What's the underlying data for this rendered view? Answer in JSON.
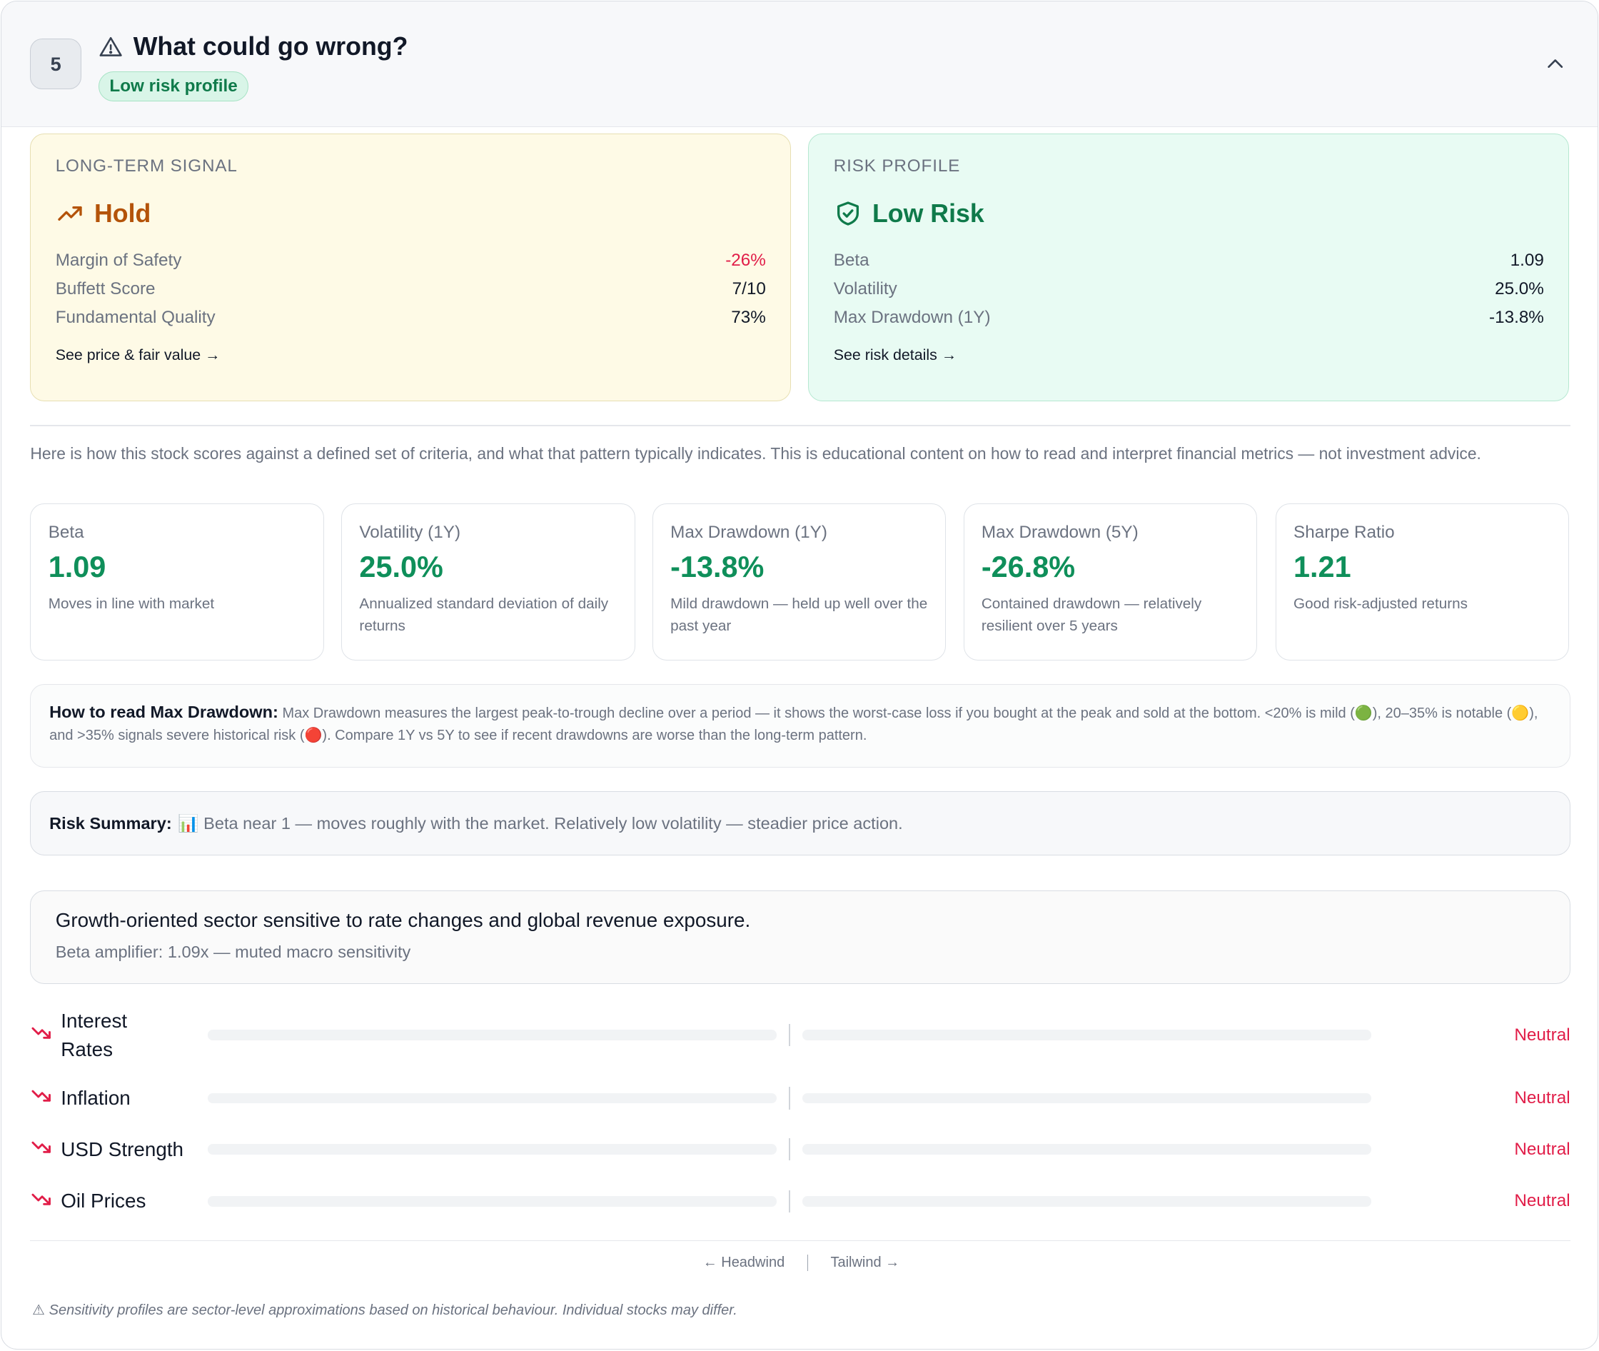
{
  "header": {
    "step": "5",
    "title": "What could go wrong?",
    "badge": "Low risk profile"
  },
  "long_term": {
    "eyebrow": "LONG-TERM SIGNAL",
    "signal": "Hold",
    "rows": [
      {
        "label": "Margin of Safety",
        "value": "-26%"
      },
      {
        "label": "Buffett Score",
        "value": "7/10"
      },
      {
        "label": "Fundamental Quality",
        "value": "73%"
      }
    ],
    "link": "See price & fair value →"
  },
  "risk_profile": {
    "eyebrow": "RISK PROFILE",
    "signal": "Low Risk",
    "rows": [
      {
        "label": "Beta",
        "value": "1.09"
      },
      {
        "label": "Volatility",
        "value": "25.0%"
      },
      {
        "label": "Max Drawdown (1Y)",
        "value": "-13.8%"
      }
    ],
    "link": "See risk details →"
  },
  "intro": "Here is how this stock scores against a defined set of criteria, and what that pattern typically indicates. This is educational content on how to read and interpret financial metrics — not investment advice.",
  "metrics": [
    {
      "label": "Beta",
      "value": "1.09",
      "desc": "Moves in line with market"
    },
    {
      "label": "Volatility (1Y)",
      "value": "25.0%",
      "desc": "Annualized standard deviation of daily returns"
    },
    {
      "label": "Max Drawdown (1Y)",
      "value": "-13.8%",
      "desc": "Mild drawdown — held up well over the past year"
    },
    {
      "label": "Max Drawdown (5Y)",
      "value": "-26.8%",
      "desc": "Contained drawdown — relatively resilient over 5 years"
    },
    {
      "label": "Sharpe Ratio",
      "value": "1.21",
      "desc": "Good risk-adjusted returns"
    }
  ],
  "howto": {
    "title": "How to read Max Drawdown:",
    "text": "Max Drawdown measures the largest peak-to-trough decline over a period — it shows the worst-case loss if you bought at the peak and sold at the bottom. <20% is mild (🟢), 20–35% is notable (🟡), and >35% signals severe historical risk (🔴). Compare 1Y vs 5Y to see if recent drawdowns are worse than the long-term pattern."
  },
  "summary": {
    "title": "Risk Summary:",
    "text": "📊 Beta near 1 — moves roughly with the market. Relatively low volatility — steadier price action."
  },
  "sector": {
    "line1": "Growth-oriented sector sensitive to rate changes and global revenue exposure.",
    "line2": "Beta amplifier: 1.09x — muted macro sensitivity"
  },
  "factors": [
    {
      "label": "Interest Rates",
      "status": "Neutral"
    },
    {
      "label": "Inflation",
      "status": "Neutral"
    },
    {
      "label": "USD Strength",
      "status": "Neutral"
    },
    {
      "label": "Oil Prices",
      "status": "Neutral"
    }
  ],
  "legend": {
    "left": "← Headwind",
    "right": "Tailwind →"
  },
  "footnote": "⚠ Sensitivity profiles are sector-level approximations based on historical behaviour. Individual stocks may differ.",
  "colors": {
    "hold": "#b45309",
    "low_risk": "#0f7a4a",
    "negative": "#e11d48",
    "metric_value": "#0f8f5a"
  }
}
